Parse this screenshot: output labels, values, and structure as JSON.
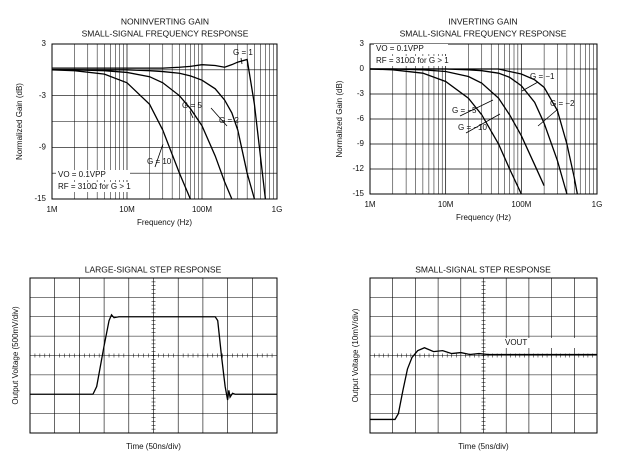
{
  "chart_data": [
    {
      "type": "line",
      "title": [
        "NONINVERTING GAIN",
        "SMALL-SIGNAL FREQUENCY RESPONSE"
      ],
      "x_label": "Frequency (Hz)",
      "y_label": "Normalized Gain (dB)",
      "xscale": "log",
      "xlim": [
        1000000,
        1000000000
      ],
      "xticks": [
        {
          "value": 1000000,
          "label": "1M"
        },
        {
          "value": 10000000,
          "label": "10M"
        },
        {
          "value": 100000000,
          "label": "100M"
        },
        {
          "value": 1000000000,
          "label": "1G"
        }
      ],
      "x_minor_ticks": [
        2000000,
        3000000,
        4000000,
        5000000,
        6000000,
        7000000,
        8000000,
        9000000,
        20000000,
        30000000,
        40000000,
        50000000,
        60000000,
        70000000,
        80000000,
        90000000,
        200000000,
        300000000,
        400000000,
        500000000,
        600000000,
        700000000,
        800000000,
        900000000
      ],
      "ylim": [
        -15,
        3
      ],
      "yticks": [
        3,
        -3,
        -9,
        -15
      ],
      "y_minor_ticks": [
        0,
        -6,
        -12
      ],
      "annotations": [
        "VO = 0.1VPP",
        "RF = 310Ω for G > 1"
      ],
      "x": [
        1000000,
        2000000,
        5000000,
        10000000,
        20000000,
        30000000,
        50000000,
        70000000,
        100000000,
        150000000,
        200000000,
        250000000,
        300000000,
        400000000,
        500000000,
        700000000
      ],
      "series": [
        {
          "name": "G = 1",
          "color": "#000000",
          "values": [
            0.2,
            0.2,
            0.2,
            0.2,
            0.2,
            0.2,
            0.3,
            0.4,
            0.6,
            0.5,
            0.3,
            0.6,
            0.9,
            1.2,
            -4,
            -15
          ]
        },
        {
          "name": "G = 2",
          "color": "#000000",
          "values": [
            0,
            0,
            0,
            0,
            -0.1,
            -0.2,
            -0.4,
            -0.7,
            -1.2,
            -2.2,
            -3.5,
            -5,
            -7,
            -12,
            -15,
            null
          ]
        },
        {
          "name": "G = 5",
          "color": "#000000",
          "values": [
            0,
            0,
            -0.1,
            -0.3,
            -0.8,
            -1.5,
            -3,
            -4.5,
            -6.5,
            -10,
            -13,
            -15,
            null,
            null,
            null,
            null
          ]
        },
        {
          "name": "G = 10",
          "color": "#000000",
          "values": [
            0,
            -0.1,
            -0.5,
            -1.5,
            -4,
            -7,
            -12,
            -15,
            null,
            null,
            null,
            null,
            null,
            null,
            null,
            null
          ]
        }
      ]
    },
    {
      "type": "line",
      "title": [
        "INVERTING GAIN",
        "SMALL-SIGNAL FREQUENCY RESPONSE"
      ],
      "x_label": "Frequency (Hz)",
      "y_label": "Normalized Gain (dB)",
      "xscale": "log",
      "xlim": [
        1000000,
        1000000000
      ],
      "xticks": [
        {
          "value": 1000000,
          "label": "1M"
        },
        {
          "value": 10000000,
          "label": "10M"
        },
        {
          "value": 100000000,
          "label": "100M"
        },
        {
          "value": 1000000000,
          "label": "1G"
        }
      ],
      "x_minor_ticks": [
        2000000,
        3000000,
        4000000,
        5000000,
        6000000,
        7000000,
        8000000,
        9000000,
        20000000,
        30000000,
        40000000,
        50000000,
        60000000,
        70000000,
        80000000,
        90000000,
        200000000,
        300000000,
        400000000,
        500000000,
        600000000,
        700000000,
        800000000,
        900000000
      ],
      "ylim": [
        -15,
        3
      ],
      "yticks": [
        3,
        0,
        -3,
        -6,
        -9,
        -12,
        -15
      ],
      "annotations": [
        "VO = 0.1VPP",
        "RF = 310Ω for G > 1"
      ],
      "x": [
        1000000,
        2000000,
        5000000,
        10000000,
        20000000,
        30000000,
        50000000,
        70000000,
        100000000,
        150000000,
        200000000,
        300000000,
        400000000,
        500000000,
        550000000
      ],
      "series": [
        {
          "name": "G = −1",
          "color": "#000000",
          "values": [
            0,
            0,
            0,
            0,
            0,
            0,
            0,
            -0.3,
            -0.6,
            -1.3,
            -2.2,
            -5,
            -9,
            -13,
            -15
          ]
        },
        {
          "name": "G = −2",
          "color": "#000000",
          "values": [
            0,
            0,
            0,
            0,
            -0.1,
            -0.2,
            -0.5,
            -1,
            -2,
            -4,
            -6.5,
            -11,
            -15,
            null,
            null
          ]
        },
        {
          "name": "G = −5",
          "color": "#000000",
          "values": [
            0,
            0,
            -0.1,
            -0.3,
            -0.9,
            -1.7,
            -3.5,
            -5.5,
            -8,
            -11.5,
            -14,
            null,
            null,
            null,
            null
          ]
        },
        {
          "name": "G = −10",
          "color": "#000000",
          "values": [
            0,
            -0.1,
            -0.5,
            -1.5,
            -3.5,
            -5.5,
            -9,
            -12,
            -15,
            null,
            null,
            null,
            null,
            null,
            null
          ]
        }
      ]
    },
    {
      "type": "line",
      "title": [
        "LARGE-SIGNAL STEP RESPONSE"
      ],
      "x_label": "Time (50ns/div)",
      "y_label": "Output Voltage (500mV/div)",
      "xscale": "linear",
      "xlim": [
        0,
        10
      ],
      "ylim": [
        0,
        8
      ],
      "xgrid": [
        0,
        1,
        2,
        3,
        4,
        5,
        6,
        7,
        8,
        9,
        10
      ],
      "ygrid": [
        0,
        1,
        2,
        3,
        4,
        5,
        6,
        7,
        8
      ],
      "x": [
        0,
        2.55,
        2.7,
        3.0,
        3.2,
        3.3,
        3.4,
        3.6,
        7.5,
        7.6,
        7.75,
        7.9,
        8.0,
        8.05,
        8.1,
        8.2,
        8.3,
        10
      ],
      "series": [
        {
          "color": "#000000",
          "values": [
            2,
            2,
            2.4,
            4.5,
            5.8,
            6.1,
            5.95,
            6,
            6,
            5.8,
            4,
            2.4,
            1.7,
            2.2,
            1.85,
            2.05,
            2,
            2
          ]
        }
      ]
    },
    {
      "type": "line",
      "title": [
        "SMALL-SIGNAL STEP RESPONSE"
      ],
      "x_label": "Time (5ns/div)",
      "y_label": "Output Voltage (10mV/div)",
      "xscale": "linear",
      "xlim": [
        0,
        10
      ],
      "ylim": [
        0,
        8
      ],
      "xgrid": [
        0,
        1,
        2,
        3,
        4,
        5,
        6,
        7,
        8,
        9,
        10
      ],
      "ygrid": [
        0,
        1,
        2,
        3,
        4,
        5,
        6,
        7,
        8
      ],
      "annotations": [
        "VOUT"
      ],
      "x": [
        0,
        1.1,
        1.25,
        1.45,
        1.65,
        1.85,
        2.1,
        2.4,
        2.8,
        3.2,
        3.6,
        4.0,
        4.4,
        4.8,
        5.2,
        10
      ],
      "series": [
        {
          "color": "#000000",
          "values": [
            0.7,
            0.7,
            1.0,
            2.2,
            3.3,
            3.9,
            4.25,
            4.4,
            4.2,
            4.25,
            4.1,
            4.15,
            4.05,
            4.1,
            4.05,
            4.05
          ]
        }
      ]
    }
  ]
}
